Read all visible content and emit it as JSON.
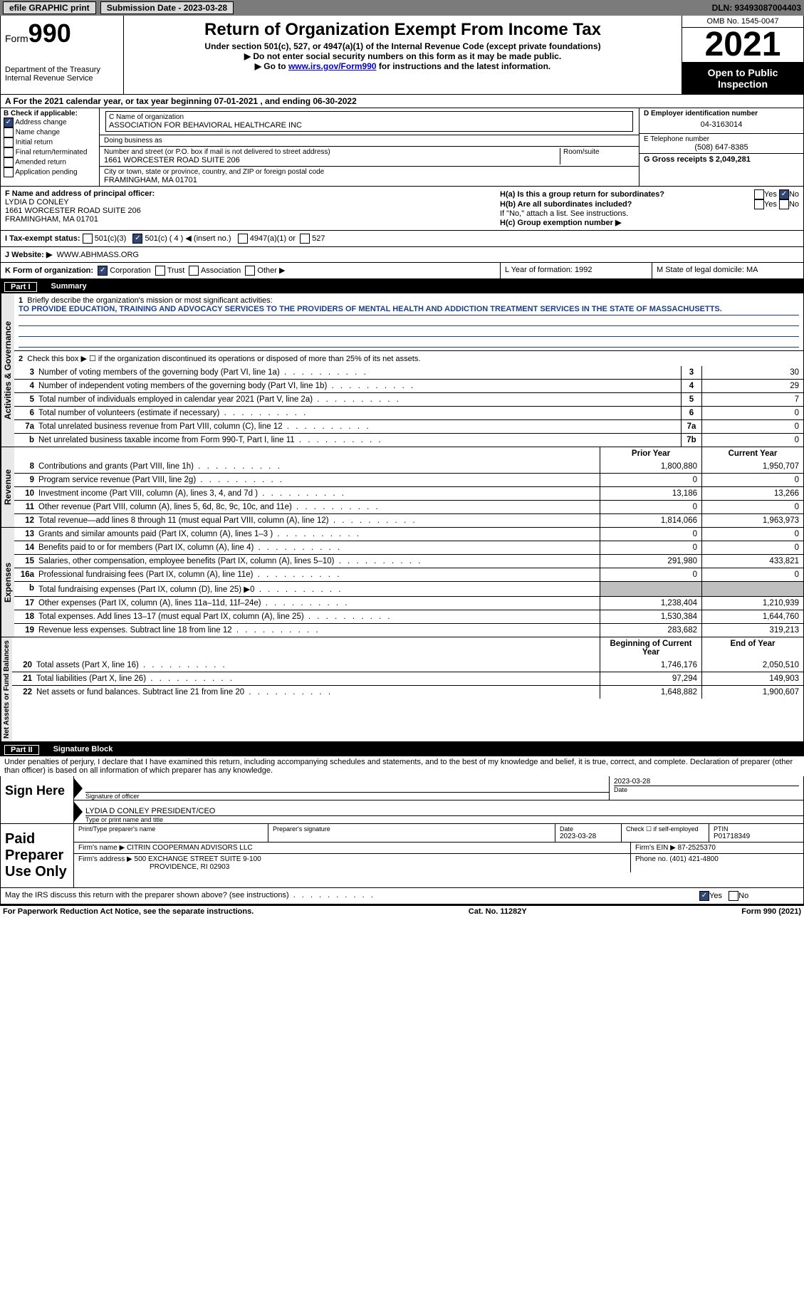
{
  "topbar": {
    "efile": "efile GRAPHIC print",
    "submission": "Submission Date - 2023-03-28",
    "dln": "DLN: 93493087004403"
  },
  "header": {
    "form_label": "Form",
    "form_num": "990",
    "dept": "Department of the Treasury\nInternal Revenue Service",
    "title": "Return of Organization Exempt From Income Tax",
    "subtitle": "Under section 501(c), 527, or 4947(a)(1) of the Internal Revenue Code (except private foundations)",
    "note1": "Do not enter social security numbers on this form as it may be made public.",
    "note2_pre": "Go to ",
    "note2_link": "www.irs.gov/Form990",
    "note2_post": " for instructions and the latest information.",
    "omb": "OMB No. 1545-0047",
    "year": "2021",
    "open": "Open to Public Inspection"
  },
  "row_a": {
    "text": "A For the 2021 calendar year, or tax year beginning 07-01-2021    , and ending 06-30-2022"
  },
  "section_b": {
    "b_label": "B Check if applicable:",
    "b_items": [
      "Address change",
      "Name change",
      "Initial return",
      "Final return/terminated",
      "Amended return",
      "Application pending"
    ],
    "b_checked": [
      true,
      false,
      false,
      false,
      false,
      false
    ],
    "c_name_label": "C Name of organization",
    "c_name": "ASSOCIATION FOR BEHAVIORAL HEALTHCARE INC",
    "dba_label": "Doing business as",
    "dba": "",
    "street_label": "Number and street (or P.O. box if mail is not delivered to street address)",
    "street": "1661 WORCESTER ROAD SUITE 206",
    "room_label": "Room/suite",
    "city_label": "City or town, state or province, country, and ZIP or foreign postal code",
    "city": "FRAMINGHAM, MA  01701",
    "d_label": "D Employer identification number",
    "d_val": "04-3163014",
    "e_label": "E Telephone number",
    "e_val": "(508) 647-8385",
    "g_label": "G Gross receipts $ 2,049,281"
  },
  "section_fh": {
    "f_label": "F  Name and address of principal officer:",
    "f_name": "LYDIA D CONLEY",
    "f_addr1": "1661 WORCESTER ROAD SUITE 206",
    "f_addr2": "FRAMINGHAM, MA  01701",
    "h_a": "H(a)  Is this a group return for subordinates?",
    "h_b": "H(b)  Are all subordinates included?",
    "h_b_note": "If \"No,\" attach a list. See instructions.",
    "h_c": "H(c)  Group exemption number ▶",
    "yes": "Yes",
    "no": "No"
  },
  "row_i": {
    "label": "I    Tax-exempt status:",
    "opt1": "501(c)(3)",
    "opt2": "501(c) ( 4 ) ◀ (insert no.)",
    "opt3": "4947(a)(1) or",
    "opt4": "527"
  },
  "row_j": {
    "label": "J   Website: ▶",
    "val": "WWW.ABHMASS.ORG"
  },
  "row_k": {
    "label": "K Form of organization:",
    "opts": [
      "Corporation",
      "Trust",
      "Association",
      "Other ▶"
    ],
    "l_label": "L Year of formation: 1992",
    "m_label": "M State of legal domicile: MA"
  },
  "part1": {
    "num": "Part I",
    "title": "Summary"
  },
  "summary": {
    "vert_labels": [
      "Activities & Governance",
      "Revenue",
      "Expenses",
      "Net Assets or Fund Balances"
    ],
    "line1_label": "Briefly describe the organization's mission or most significant activities:",
    "mission": "TO PROVIDE EDUCATION, TRAINING AND ADVOCACY SERVICES TO THE PROVIDERS OF MENTAL HEALTH AND ADDICTION TREATMENT SERVICES IN THE STATE OF MASSACHUSETTS.",
    "line2": "Check this box ▶ ☐ if the organization discontinued its operations or disposed of more than 25% of its net assets.",
    "lines_gov": [
      {
        "n": "3",
        "d": "Number of voting members of the governing body (Part VI, line 1a)",
        "box": "3",
        "v": "30"
      },
      {
        "n": "4",
        "d": "Number of independent voting members of the governing body (Part VI, line 1b)",
        "box": "4",
        "v": "29"
      },
      {
        "n": "5",
        "d": "Total number of individuals employed in calendar year 2021 (Part V, line 2a)",
        "box": "5",
        "v": "7"
      },
      {
        "n": "6",
        "d": "Total number of volunteers (estimate if necessary)",
        "box": "6",
        "v": "0"
      },
      {
        "n": "7a",
        "d": "Total unrelated business revenue from Part VIII, column (C), line 12",
        "box": "7a",
        "v": "0"
      },
      {
        "n": "b",
        "d": "Net unrelated business taxable income from Form 990-T, Part I, line 11",
        "box": "7b",
        "v": "0"
      }
    ],
    "col_headers": {
      "prior": "Prior Year",
      "current": "Current Year"
    },
    "lines_rev": [
      {
        "n": "8",
        "d": "Contributions and grants (Part VIII, line 1h)",
        "p": "1,800,880",
        "c": "1,950,707"
      },
      {
        "n": "9",
        "d": "Program service revenue (Part VIII, line 2g)",
        "p": "0",
        "c": "0"
      },
      {
        "n": "10",
        "d": "Investment income (Part VIII, column (A), lines 3, 4, and 7d )",
        "p": "13,186",
        "c": "13,266"
      },
      {
        "n": "11",
        "d": "Other revenue (Part VIII, column (A), lines 5, 6d, 8c, 9c, 10c, and 11e)",
        "p": "0",
        "c": "0"
      },
      {
        "n": "12",
        "d": "Total revenue—add lines 8 through 11 (must equal Part VIII, column (A), line 12)",
        "p": "1,814,066",
        "c": "1,963,973"
      }
    ],
    "lines_exp": [
      {
        "n": "13",
        "d": "Grants and similar amounts paid (Part IX, column (A), lines 1–3 )",
        "p": "0",
        "c": "0"
      },
      {
        "n": "14",
        "d": "Benefits paid to or for members (Part IX, column (A), line 4)",
        "p": "0",
        "c": "0"
      },
      {
        "n": "15",
        "d": "Salaries, other compensation, employee benefits (Part IX, column (A), lines 5–10)",
        "p": "291,980",
        "c": "433,821"
      },
      {
        "n": "16a",
        "d": "Professional fundraising fees (Part IX, column (A), line 11e)",
        "p": "0",
        "c": "0"
      },
      {
        "n": "b",
        "d": "Total fundraising expenses (Part IX, column (D), line 25) ▶0",
        "p": "shade",
        "c": "shade"
      },
      {
        "n": "17",
        "d": "Other expenses (Part IX, column (A), lines 11a–11d, 11f–24e)",
        "p": "1,238,404",
        "c": "1,210,939"
      },
      {
        "n": "18",
        "d": "Total expenses. Add lines 13–17 (must equal Part IX, column (A), line 25)",
        "p": "1,530,384",
        "c": "1,644,760"
      },
      {
        "n": "19",
        "d": "Revenue less expenses. Subtract line 18 from line 12",
        "p": "283,682",
        "c": "319,213"
      }
    ],
    "net_headers": {
      "begin": "Beginning of Current Year",
      "end": "End of Year"
    },
    "lines_net": [
      {
        "n": "20",
        "d": "Total assets (Part X, line 16)",
        "p": "1,746,176",
        "c": "2,050,510"
      },
      {
        "n": "21",
        "d": "Total liabilities (Part X, line 26)",
        "p": "97,294",
        "c": "149,903"
      },
      {
        "n": "22",
        "d": "Net assets or fund balances. Subtract line 21 from line 20",
        "p": "1,648,882",
        "c": "1,900,607"
      }
    ]
  },
  "part2": {
    "num": "Part II",
    "title": "Signature Block",
    "penalty": "Under penalties of perjury, I declare that I have examined this return, including accompanying schedules and statements, and to the best of my knowledge and belief, it is true, correct, and complete. Declaration of preparer (other than officer) is based on all information of which preparer has any knowledge."
  },
  "sign": {
    "label": "Sign Here",
    "sig_officer": "Signature of officer",
    "date": "Date",
    "date_val": "2023-03-28",
    "name": "LYDIA D CONLEY  PRESIDENT/CEO",
    "name_label": "Type or print name and title"
  },
  "preparer": {
    "label": "Paid Preparer Use Only",
    "print_name_label": "Print/Type preparer's name",
    "sig_label": "Preparer's signature",
    "date_label": "Date",
    "date_val": "2023-03-28",
    "check_label": "Check ☐ if self-employed",
    "ptin_label": "PTIN",
    "ptin": "P01718349",
    "firm_name_label": "Firm's name    ▶",
    "firm_name": "CITRIN COOPERMAN ADVISORS LLC",
    "firm_ein_label": "Firm's EIN ▶",
    "firm_ein": "87-2525370",
    "firm_addr_label": "Firm's address ▶",
    "firm_addr1": "500 EXCHANGE STREET SUITE 9-100",
    "firm_addr2": "PROVIDENCE, RI  02903",
    "phone_label": "Phone no.",
    "phone": "(401) 421-4800"
  },
  "discuss": {
    "text": "May the IRS discuss this return with the preparer shown above? (see instructions)",
    "yes": "Yes",
    "no": "No"
  },
  "footer": {
    "left": "For Paperwork Reduction Act Notice, see the separate instructions.",
    "mid": "Cat. No. 11282Y",
    "right": "Form 990 (2021)"
  }
}
